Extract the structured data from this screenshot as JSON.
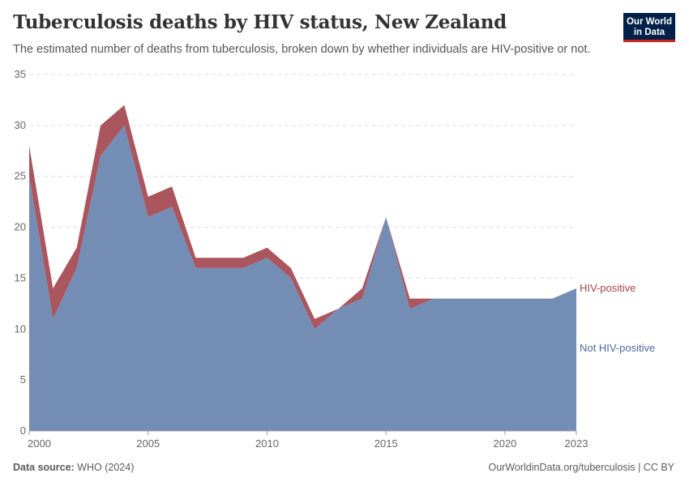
{
  "header": {
    "title": "Tuberculosis deaths by HIV status, New Zealand",
    "subtitle": "The estimated number of deaths from tuberculosis, broken down by whether individuals are HIV-positive or not."
  },
  "logo": {
    "line1": "Our World",
    "line2": "in Data"
  },
  "footer": {
    "source_label": "Data source:",
    "source_value": "WHO (2024)",
    "url": "OurWorldinData.org/tuberculosis | CC BY"
  },
  "chart_data": {
    "type": "area",
    "stacked": true,
    "x": [
      2000,
      2001,
      2002,
      2003,
      2004,
      2005,
      2006,
      2007,
      2008,
      2009,
      2010,
      2011,
      2012,
      2013,
      2014,
      2015,
      2016,
      2017,
      2018,
      2019,
      2020,
      2021,
      2022,
      2023
    ],
    "series": [
      {
        "name": "Not HIV-positive",
        "color": "#6d87b1",
        "values": [
          25,
          11,
          16,
          27,
          30,
          21,
          22,
          16,
          16,
          16,
          17,
          15,
          10,
          12,
          13,
          21,
          12,
          13,
          13,
          13,
          13,
          13,
          13,
          14
        ]
      },
      {
        "name": "HIV-positive",
        "color": "#a2434c",
        "values": [
          3,
          3,
          2,
          3,
          2,
          2,
          2,
          1,
          1,
          1,
          1,
          1,
          1,
          0,
          1,
          0,
          1,
          0,
          0,
          0,
          0,
          0,
          0,
          0
        ]
      }
    ],
    "x_ticks": [
      "2000",
      "2005",
      "2010",
      "2015",
      "2020",
      "2023"
    ],
    "y_ticks": [
      "0",
      "5",
      "10",
      "15",
      "20",
      "25",
      "30",
      "35"
    ],
    "ylim": [
      0,
      35
    ],
    "xlim": [
      2000,
      2023
    ],
    "grid": true,
    "legend": "right-inline"
  }
}
